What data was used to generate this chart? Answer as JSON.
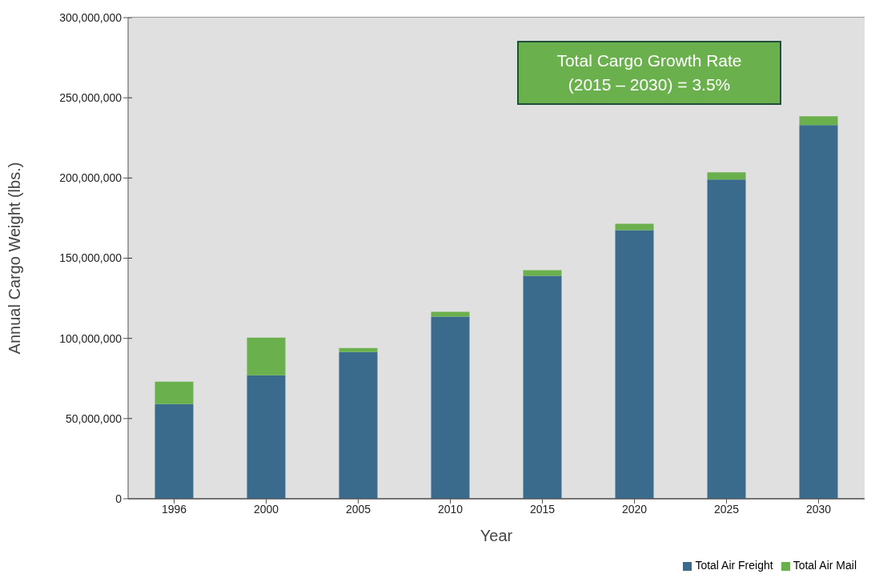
{
  "chart_data": {
    "type": "bar",
    "stacked": true,
    "xlabel": "Year",
    "ylabel": "Annual Cargo Weight (lbs.)",
    "categories": [
      "1996",
      "2000",
      "2005",
      "2010",
      "2015",
      "2020",
      "2025",
      "2030"
    ],
    "series": [
      {
        "name": "Total Air Freight",
        "color": "#3a6b8c",
        "values": [
          59000000,
          77000000,
          91500000,
          113500000,
          139000000,
          167500000,
          199000000,
          233000000
        ]
      },
      {
        "name": "Total Air Mail",
        "color": "#6ab04c",
        "values": [
          14000000,
          23500000,
          2500000,
          3000000,
          3500000,
          4000000,
          4500000,
          5500000
        ]
      }
    ],
    "ylim": [
      0,
      300000000
    ],
    "yticks": [
      {
        "value": 0,
        "label": "0"
      },
      {
        "value": 50000000,
        "label": "50,000,000"
      },
      {
        "value": 100000000,
        "label": "100,000,000"
      },
      {
        "value": 150000000,
        "label": "150,000,000"
      },
      {
        "value": 200000000,
        "label": "200,000,000"
      },
      {
        "value": 250000000,
        "label": "250,000,000"
      },
      {
        "value": 300000000,
        "label": "300,000,000"
      }
    ],
    "grid": "y",
    "legend": "bottom right",
    "annotations": [
      "Total Cargo Growth Rate (2015 – 2030) = 3.5%"
    ]
  }
}
